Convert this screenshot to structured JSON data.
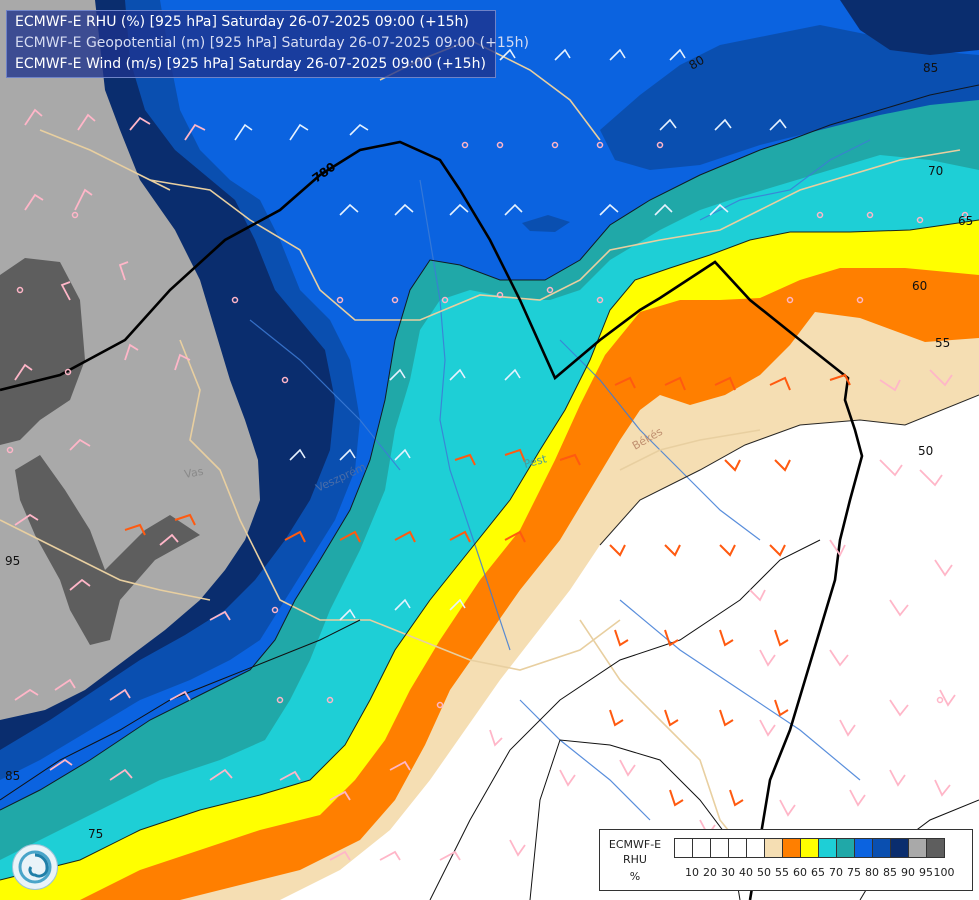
{
  "title": {
    "line1": "ECMWF-E RHU (%) [925 hPa] Saturday 26-07-2025 09:00 (+15h)",
    "line2": "ECMWF-E Geopotential (m) [925 hPa] Saturday 26-07-2025 09:00 (+15h)",
    "line3": "ECMWF-E Wind (m/s) [925 hPa] Saturday 26-07-2025 09:00 (+15h)"
  },
  "legend": {
    "name_line1": "ECMWF-E",
    "name_line2": "RHU",
    "unit": "%",
    "ticks": [
      "10",
      "20",
      "30",
      "40",
      "50",
      "55",
      "60",
      "65",
      "70",
      "75",
      "80",
      "85",
      "90",
      "95",
      "100"
    ],
    "colors": [
      "#ffffff",
      "#ffffff",
      "#ffffff",
      "#ffffff",
      "#ffffff",
      "#f5deb3",
      "#ff7f00",
      "#ffff00",
      "#1ecfd6",
      "#20a8a8",
      "#0b63e0",
      "#0a4fb0",
      "#0a2d6e",
      "#a9a9a9",
      "#5e5e5e"
    ]
  },
  "contour_labels": {
    "rhu_50": "50",
    "rhu_55": "55",
    "rhu_60": "60",
    "rhu_65": "65",
    "rhu_70": "70",
    "rhu_80": "80",
    "rhu_85_top": "85",
    "rhu_85_bottom": "85",
    "rhu_95": "95",
    "rhu_75": "75",
    "geo_780": "780"
  },
  "place_labels": {
    "vas": "Vas",
    "pest": "Pest",
    "bekes": "Békés",
    "veszprem": "Veszprém"
  },
  "colors": {
    "rhu_30": "#ffffff",
    "rhu_55": "#f5deb3",
    "rhu_60": "#ff7f00",
    "rhu_65": "#ffff00",
    "rhu_70": "#1ecfd6",
    "rhu_75": "#20a8a8",
    "rhu_80": "#0b63e0",
    "rhu_85": "#0a4fb0",
    "rhu_90": "#0a2d6e",
    "rhu_95": "#a9a9a9",
    "rhu_100": "#5e5e5e",
    "barb_humid": "#ffb6c8",
    "barb_dry": "#ff5a10",
    "border": "#e8cfa0",
    "river": "#3d7bd6"
  }
}
